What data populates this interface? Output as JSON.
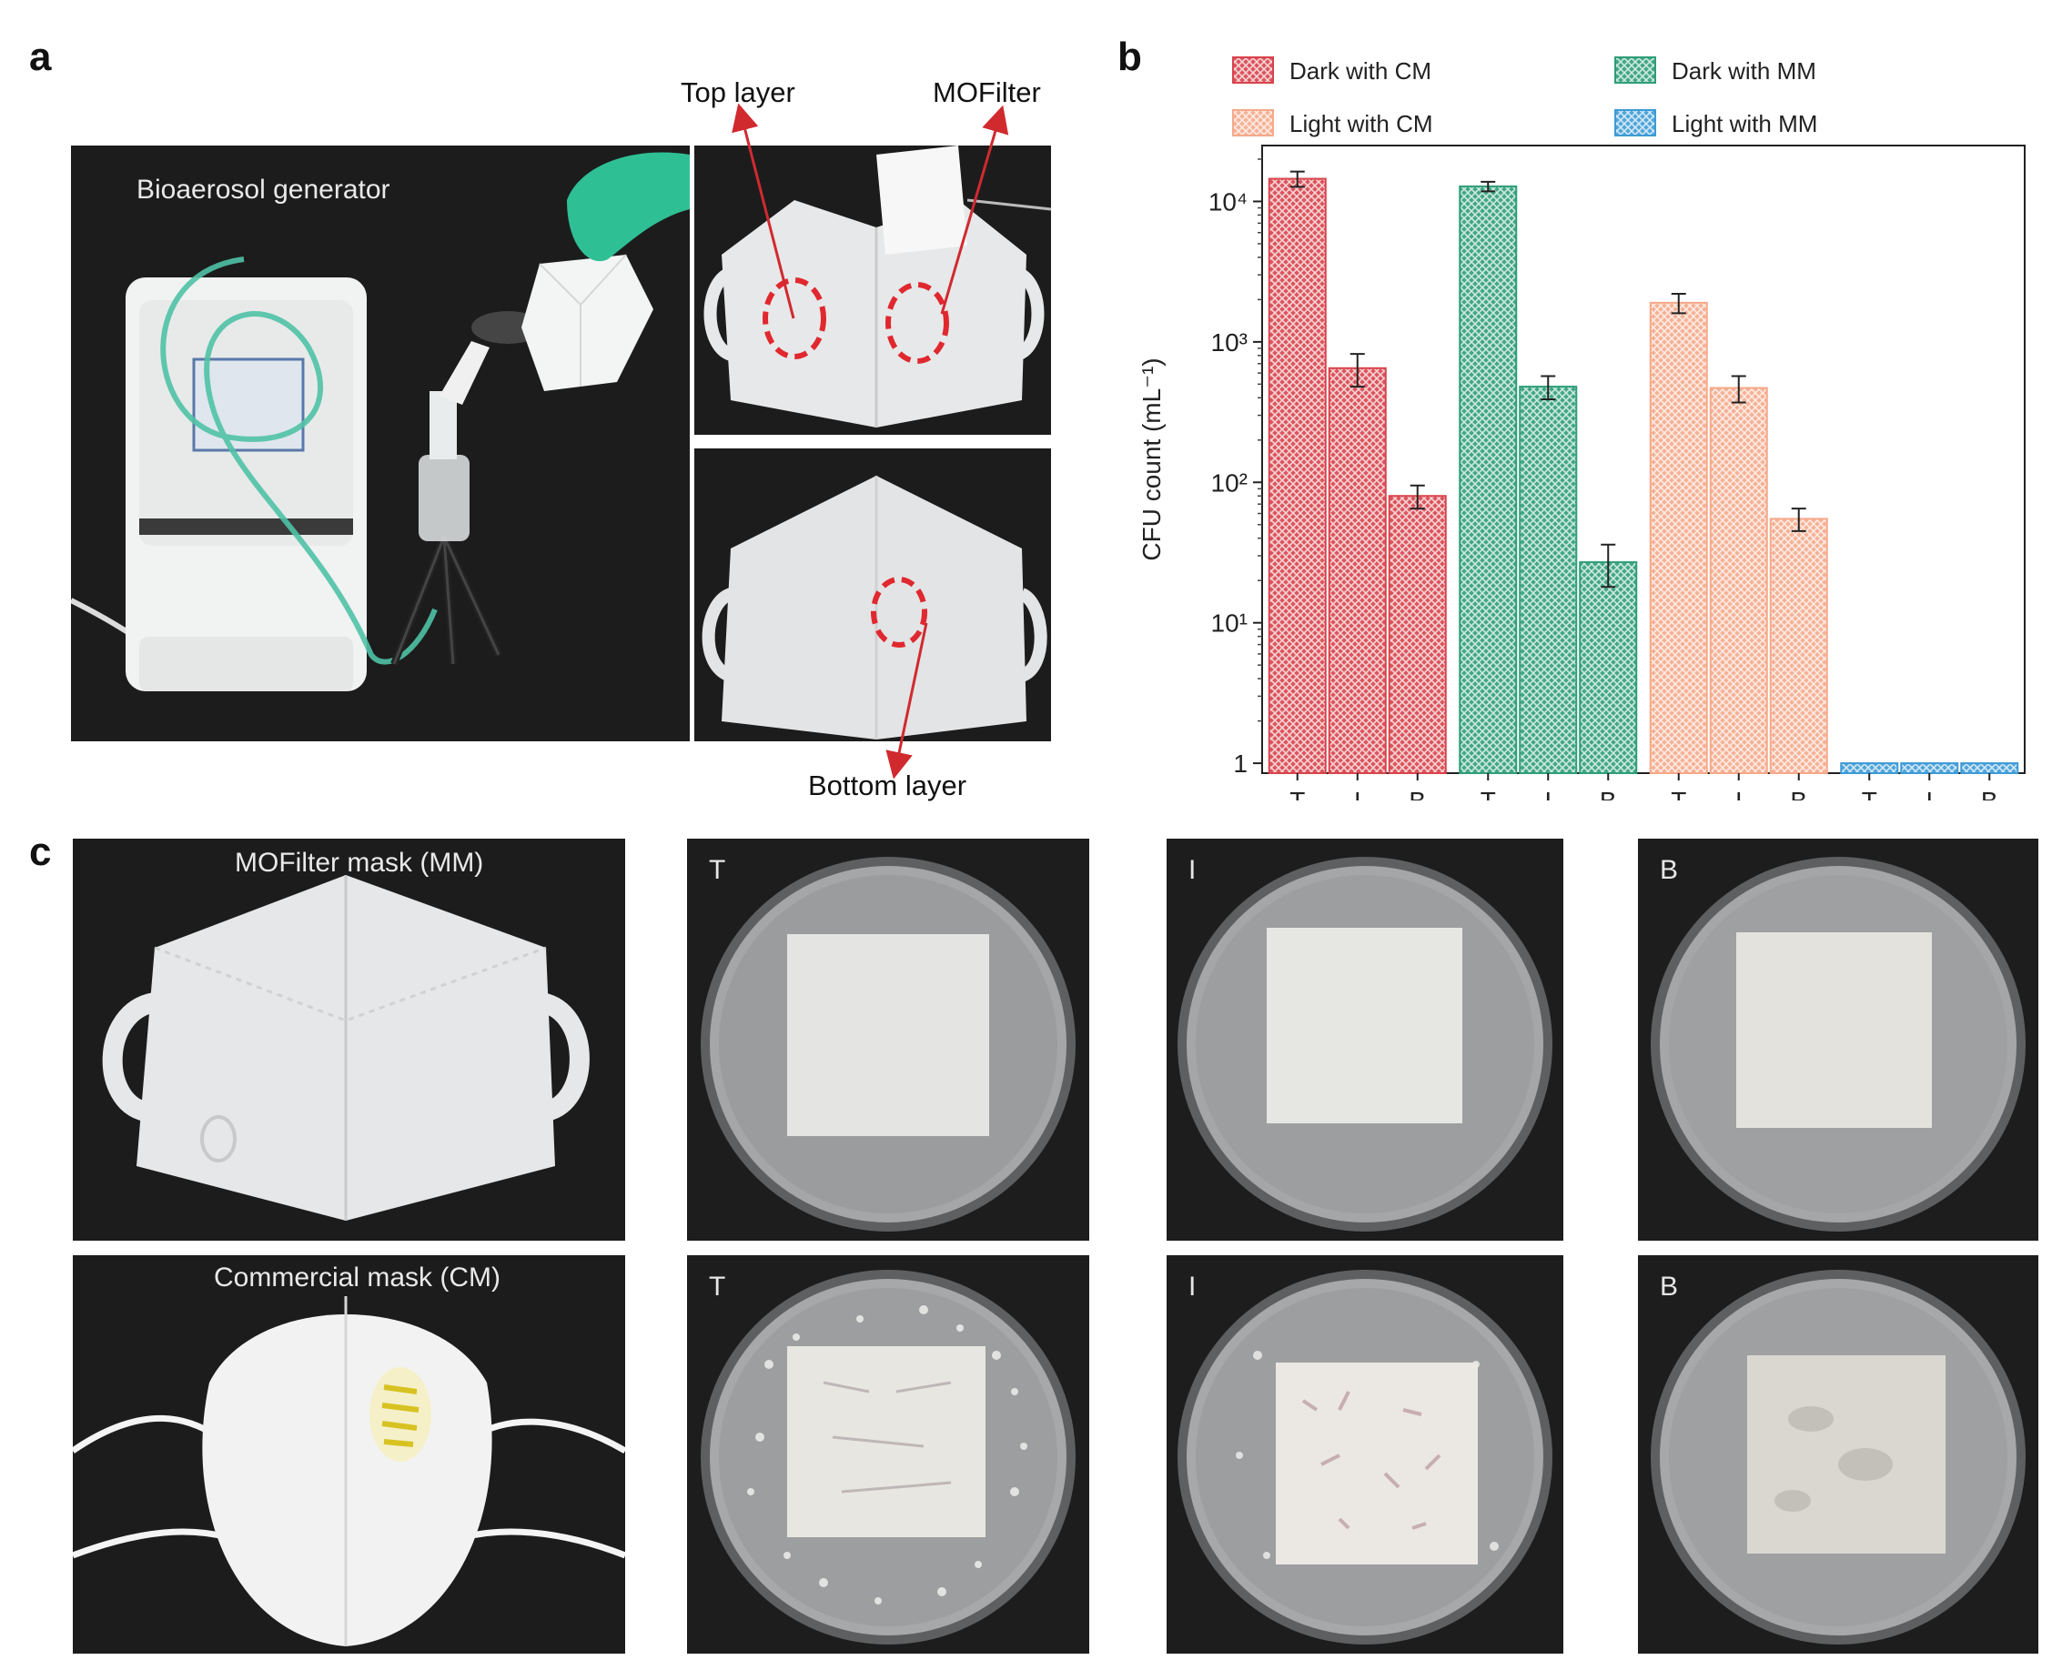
{
  "figure": {
    "panel_a": {
      "letter": "a",
      "generator_label": "Bioaerosol generator",
      "callout_top_layer": "Top layer",
      "callout_mofilter": "MOFilter",
      "callout_bottom_layer": "Bottom layer"
    },
    "panel_b": {
      "letter": "b"
    },
    "panel_c": {
      "letter": "c",
      "mm_label": "MOFilter mask (MM)",
      "cm_label": "Commercial mask (CM)",
      "dishes": {
        "mm_t": "T",
        "mm_i": "I",
        "mm_b": "B",
        "cm_t": "T",
        "cm_i": "I",
        "cm_b": "B"
      }
    }
  },
  "colors": {
    "dark_cm": "#d9434b",
    "dark_mm": "#2e9e78",
    "light_cm": "#f6a98a",
    "light_mm": "#3d9bd6",
    "photo_bg": "#1b1b1b"
  },
  "chart_data": {
    "type": "bar",
    "yscale": "log",
    "ylabel": "CFU count (mL⁻¹)",
    "ylim": [
      0.85,
      25000
    ],
    "yticks": [
      {
        "value": 1,
        "label": "1"
      },
      {
        "value": 10,
        "label": "10¹"
      },
      {
        "value": 100,
        "label": "10²"
      },
      {
        "value": 1000,
        "label": "10³"
      },
      {
        "value": 10000,
        "label": "10⁴"
      }
    ],
    "categories": [
      "T",
      "I",
      "B"
    ],
    "legend_placement": "top",
    "series": [
      {
        "name": "Dark with CM",
        "color": "#d9434b",
        "values": [
          14500,
          650,
          80
        ],
        "errors": [
          1800,
          170,
          15
        ]
      },
      {
        "name": "Dark with MM",
        "color": "#2e9e78",
        "values": [
          12800,
          480,
          27
        ],
        "errors": [
          1000,
          90,
          9
        ]
      },
      {
        "name": "Light with CM",
        "color": "#f6a98a",
        "values": [
          1900,
          470,
          55
        ],
        "errors": [
          300,
          100,
          10
        ]
      },
      {
        "name": "Light with MM",
        "color": "#3d9bd6",
        "values": [
          1,
          1,
          1
        ],
        "errors": [
          0,
          0,
          0
        ]
      }
    ]
  }
}
